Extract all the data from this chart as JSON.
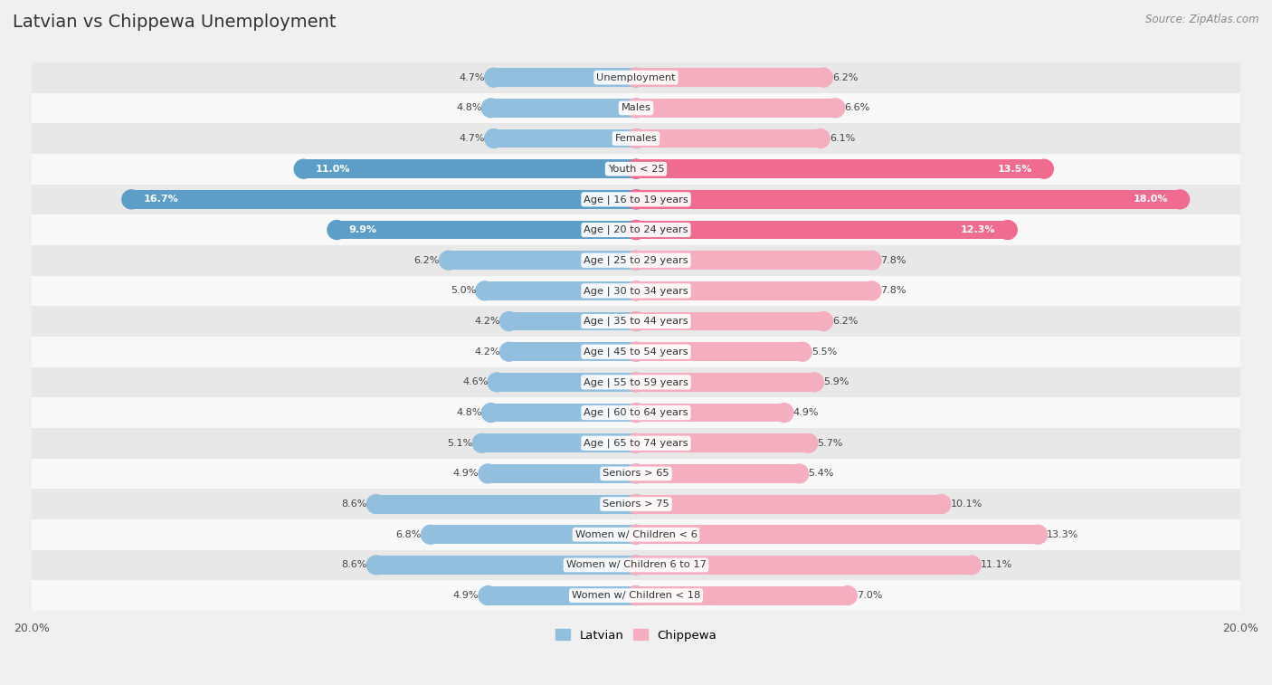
{
  "title": "Latvian vs Chippewa Unemployment",
  "source": "Source: ZipAtlas.com",
  "categories": [
    "Unemployment",
    "Males",
    "Females",
    "Youth < 25",
    "Age | 16 to 19 years",
    "Age | 20 to 24 years",
    "Age | 25 to 29 years",
    "Age | 30 to 34 years",
    "Age | 35 to 44 years",
    "Age | 45 to 54 years",
    "Age | 55 to 59 years",
    "Age | 60 to 64 years",
    "Age | 65 to 74 years",
    "Seniors > 65",
    "Seniors > 75",
    "Women w/ Children < 6",
    "Women w/ Children 6 to 17",
    "Women w/ Children < 18"
  ],
  "latvian": [
    4.7,
    4.8,
    4.7,
    11.0,
    16.7,
    9.9,
    6.2,
    5.0,
    4.2,
    4.2,
    4.6,
    4.8,
    5.1,
    4.9,
    8.6,
    6.8,
    8.6,
    4.9
  ],
  "chippewa": [
    6.2,
    6.6,
    6.1,
    13.5,
    18.0,
    12.3,
    7.8,
    7.8,
    6.2,
    5.5,
    5.9,
    4.9,
    5.7,
    5.4,
    10.1,
    13.3,
    11.1,
    7.0
  ],
  "latvian_color": "#92bfde",
  "chippewa_color": "#f5aec0",
  "highlight_latvian_color": "#5d9ec8",
  "highlight_chippewa_color": "#f06b90",
  "bg_color": "#f0f0f0",
  "row_even_color": "#e8e8e8",
  "row_odd_color": "#f8f8f8",
  "xlim": 20.0,
  "bar_height": 0.62,
  "highlight_rows": [
    3,
    4,
    5
  ],
  "legend_latvian": "Latvian",
  "legend_chippewa": "Chippewa"
}
